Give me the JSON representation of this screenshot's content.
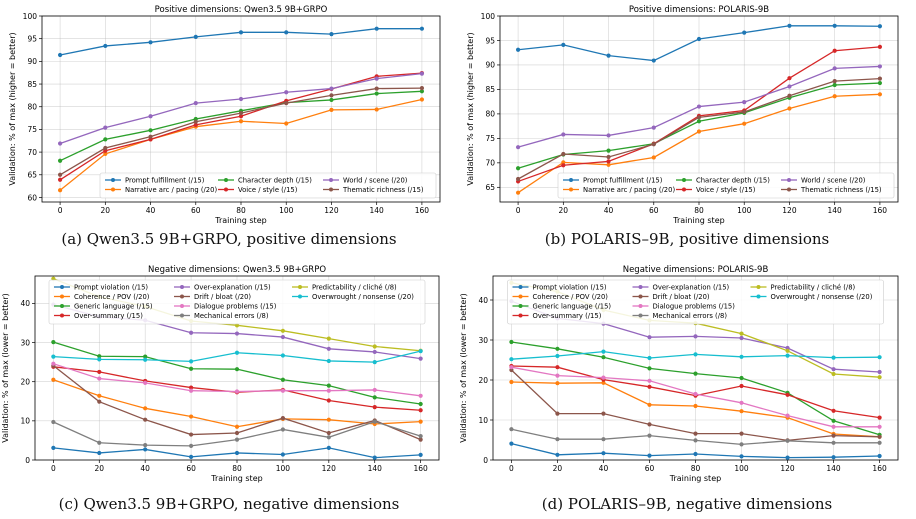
{
  "figure": {
    "captions": [
      "(a) Qwen3.5 9B+GRPO, positive dimensions",
      "(b) POLARIS–9B, positive dimensions",
      "(c) Qwen3.5 9B+GRPO, negative dimensions",
      "(d) POLARIS–9B, negative dimensions"
    ]
  },
  "chart_data": [
    {
      "type": "line",
      "title": "Positive dimensions: Qwen3.5 9B+GRPO",
      "xlabel": "Training step",
      "ylabel": "Validation: % of max (higher = better)",
      "x": [
        0,
        20,
        40,
        60,
        80,
        100,
        120,
        140,
        160
      ],
      "xlim": [
        -8,
        168
      ],
      "ylim": [
        59,
        100
      ],
      "yticks": [
        60,
        65,
        70,
        75,
        80,
        85,
        90,
        95,
        100
      ],
      "xticks": [
        0,
        20,
        40,
        60,
        80,
        100,
        120,
        140,
        160
      ],
      "grid": true,
      "legend_position": "lower-right",
      "legend_columns": 3,
      "series": [
        {
          "name": "Prompt fulfillment (/15)",
          "color": "#1f77b4",
          "values": [
            91.4,
            93.4,
            94.2,
            95.4,
            96.4,
            96.4,
            96.0,
            97.2,
            97.2
          ]
        },
        {
          "name": "Narrative arc / pacing (/20)",
          "color": "#ff7f0e",
          "values": [
            61.6,
            69.6,
            72.8,
            75.6,
            76.8,
            76.3,
            79.3,
            79.4,
            81.6
          ]
        },
        {
          "name": "Character depth (/15)",
          "color": "#2ca02c",
          "values": [
            68.1,
            72.8,
            74.8,
            77.3,
            79.1,
            80.9,
            81.5,
            82.9,
            83.4
          ]
        },
        {
          "name": "Voice / style (/15)",
          "color": "#d62728",
          "values": [
            63.9,
            70.3,
            72.8,
            76.0,
            77.9,
            81.3,
            83.9,
            86.7,
            87.4
          ]
        },
        {
          "name": "World / scene (/20)",
          "color": "#9467bd",
          "values": [
            71.9,
            75.4,
            77.9,
            80.8,
            81.7,
            83.2,
            84.0,
            86.2,
            87.3
          ]
        },
        {
          "name": "Thematic richness (/15)",
          "color": "#8c564b",
          "values": [
            65.0,
            70.9,
            73.4,
            76.7,
            78.6,
            80.8,
            82.5,
            84.0,
            84.1
          ]
        }
      ]
    },
    {
      "type": "line",
      "title": "Positive dimensions: POLARIS-9B",
      "xlabel": "Training step",
      "ylabel": "Validation: % of max (higher = better)",
      "x": [
        0,
        20,
        40,
        60,
        80,
        100,
        120,
        140,
        160
      ],
      "xlim": [
        -8,
        168
      ],
      "ylim": [
        62,
        100
      ],
      "yticks": [
        65,
        70,
        75,
        80,
        85,
        90,
        95,
        100
      ],
      "xticks": [
        0,
        20,
        40,
        60,
        80,
        100,
        120,
        140,
        160
      ],
      "grid": true,
      "legend_position": "lower-right",
      "legend_columns": 3,
      "series": [
        {
          "name": "Prompt fulfillment (/15)",
          "color": "#1f77b4",
          "values": [
            93.1,
            94.1,
            91.9,
            90.9,
            95.3,
            96.6,
            98.0,
            98.0,
            97.9
          ]
        },
        {
          "name": "Narrative arc / pacing (/20)",
          "color": "#ff7f0e",
          "values": [
            63.9,
            70.1,
            69.6,
            71.1,
            76.4,
            78.0,
            81.1,
            83.6,
            84.0
          ]
        },
        {
          "name": "Character depth (/15)",
          "color": "#2ca02c",
          "values": [
            68.9,
            71.7,
            72.5,
            73.9,
            78.5,
            80.2,
            83.3,
            85.9,
            86.3
          ]
        },
        {
          "name": "Voice / style (/15)",
          "color": "#d62728",
          "values": [
            66.2,
            69.5,
            70.3,
            73.9,
            79.6,
            80.7,
            87.3,
            92.9,
            93.7
          ]
        },
        {
          "name": "World / scene (/20)",
          "color": "#9467bd",
          "values": [
            73.2,
            75.8,
            75.6,
            77.2,
            81.5,
            82.4,
            85.6,
            89.3,
            89.7
          ]
        },
        {
          "name": "Thematic richness (/15)",
          "color": "#8c564b",
          "values": [
            66.7,
            71.8,
            71.2,
            73.8,
            79.3,
            80.4,
            83.7,
            86.7,
            87.2
          ]
        }
      ]
    },
    {
      "type": "line",
      "title": "Negative dimensions: Qwen3.5 9B+GRPO",
      "xlabel": "Training step",
      "ylabel": "Validation: % of max (lower = better)",
      "x": [
        0,
        20,
        40,
        60,
        80,
        100,
        120,
        140,
        160
      ],
      "xlim": [
        -8,
        168
      ],
      "ylim": [
        0,
        47
      ],
      "yticks": [
        0,
        10,
        20,
        30,
        40
      ],
      "xticks": [
        0,
        20,
        40,
        60,
        80,
        100,
        120,
        140,
        160
      ],
      "grid": true,
      "legend_position": "top",
      "legend_columns": 3,
      "series": [
        {
          "name": "Prompt violation (/15)",
          "color": "#1f77b4",
          "values": [
            3.1,
            1.8,
            2.7,
            0.8,
            1.8,
            1.4,
            3.1,
            0.6,
            1.3
          ]
        },
        {
          "name": "Coherence / POV (/20)",
          "color": "#ff7f0e",
          "values": [
            20.5,
            16.4,
            13.2,
            11.1,
            8.5,
            10.5,
            10.3,
            9.2,
            9.8
          ]
        },
        {
          "name": "Generic language (/15)",
          "color": "#2ca02c",
          "values": [
            30.1,
            26.5,
            26.4,
            23.3,
            23.2,
            20.5,
            19.0,
            16.0,
            14.3
          ]
        },
        {
          "name": "Over-summary (/15)",
          "color": "#d62728",
          "values": [
            23.8,
            22.5,
            20.2,
            18.5,
            17.3,
            17.9,
            15.2,
            13.5,
            12.7
          ]
        },
        {
          "name": "Over-explanation (/15)",
          "color": "#9467bd",
          "values": [
            39.7,
            36.6,
            35.7,
            32.5,
            32.3,
            31.4,
            28.4,
            27.6,
            25.9
          ]
        },
        {
          "name": "Drift / bloat (/20)",
          "color": "#8c564b",
          "values": [
            24.1,
            14.9,
            10.3,
            6.5,
            6.9,
            10.7,
            6.9,
            10.1,
            5.2
          ]
        },
        {
          "name": "Dialogue problems (/15)",
          "color": "#e377c2",
          "values": [
            24.6,
            20.8,
            19.7,
            17.7,
            17.5,
            17.7,
            17.7,
            17.9,
            16.4
          ]
        },
        {
          "name": "Mechanical errors (/8)",
          "color": "#7f7f7f",
          "values": [
            9.7,
            4.4,
            3.8,
            3.6,
            5.2,
            7.8,
            5.8,
            9.8,
            6.1
          ]
        },
        {
          "name": "Predictability / cliché (/8)",
          "color": "#bcbd22",
          "values": [
            46.3,
            41.7,
            39.2,
            35.5,
            34.4,
            33.0,
            31.0,
            29.0,
            27.9
          ]
        },
        {
          "name": "Overwrought / nonsense (/20)",
          "color": "#17becf",
          "values": [
            26.4,
            25.7,
            25.6,
            25.2,
            27.4,
            26.7,
            25.3,
            25.0,
            27.8
          ]
        }
      ]
    },
    {
      "type": "line",
      "title": "Negative dimensions: POLARIS-9B",
      "xlabel": "Training step",
      "ylabel": "Validation: % of max (lower = better)",
      "x": [
        0,
        20,
        40,
        60,
        80,
        100,
        120,
        140,
        160
      ],
      "xlim": [
        -8,
        168
      ],
      "ylim": [
        0,
        46
      ],
      "yticks": [
        0,
        10,
        20,
        30,
        40
      ],
      "xticks": [
        0,
        20,
        40,
        60,
        80,
        100,
        120,
        140,
        160
      ],
      "grid": true,
      "legend_position": "top",
      "legend_columns": 3,
      "series": [
        {
          "name": "Prompt violation (/15)",
          "color": "#1f77b4",
          "values": [
            4.1,
            1.3,
            1.7,
            1.1,
            1.5,
            0.9,
            0.6,
            0.7,
            1.0
          ]
        },
        {
          "name": "Coherence / POV (/20)",
          "color": "#ff7f0e",
          "values": [
            19.5,
            19.2,
            19.3,
            13.8,
            13.5,
            12.2,
            10.6,
            6.5,
            5.8
          ]
        },
        {
          "name": "Generic language (/15)",
          "color": "#2ca02c",
          "values": [
            29.5,
            27.8,
            25.7,
            22.9,
            21.6,
            20.5,
            16.8,
            9.8,
            6.3
          ]
        },
        {
          "name": "Over-summary (/15)",
          "color": "#d62728",
          "values": [
            23.5,
            23.2,
            20.1,
            18.3,
            16.1,
            18.5,
            16.3,
            12.3,
            10.6
          ]
        },
        {
          "name": "Over-explanation (/15)",
          "color": "#9467bd",
          "values": [
            39.7,
            35.4,
            34.1,
            30.7,
            30.9,
            30.5,
            28.0,
            22.7,
            22.0
          ]
        },
        {
          "name": "Drift / bloat (/20)",
          "color": "#8c564b",
          "values": [
            22.5,
            11.6,
            11.6,
            8.9,
            6.6,
            6.6,
            4.9,
            6.1,
            5.8
          ]
        },
        {
          "name": "Dialogue problems (/15)",
          "color": "#e377c2",
          "values": [
            23.2,
            21.1,
            20.6,
            19.8,
            16.5,
            14.3,
            11.1,
            8.3,
            8.3
          ]
        },
        {
          "name": "Mechanical errors (/8)",
          "color": "#7f7f7f",
          "values": [
            7.7,
            5.2,
            5.2,
            6.1,
            4.9,
            3.9,
            4.8,
            4.3,
            4.3
          ]
        },
        {
          "name": "Predictability / cliché (/8)",
          "color": "#bcbd22",
          "values": [
            44.3,
            42.1,
            37.5,
            34.9,
            34.2,
            31.6,
            27.3,
            21.5,
            20.7
          ]
        },
        {
          "name": "Overwrought / nonsense (/20)",
          "color": "#17becf",
          "values": [
            25.2,
            26.0,
            27.1,
            25.5,
            26.4,
            25.8,
            26.1,
            25.6,
            25.7
          ]
        }
      ]
    }
  ]
}
